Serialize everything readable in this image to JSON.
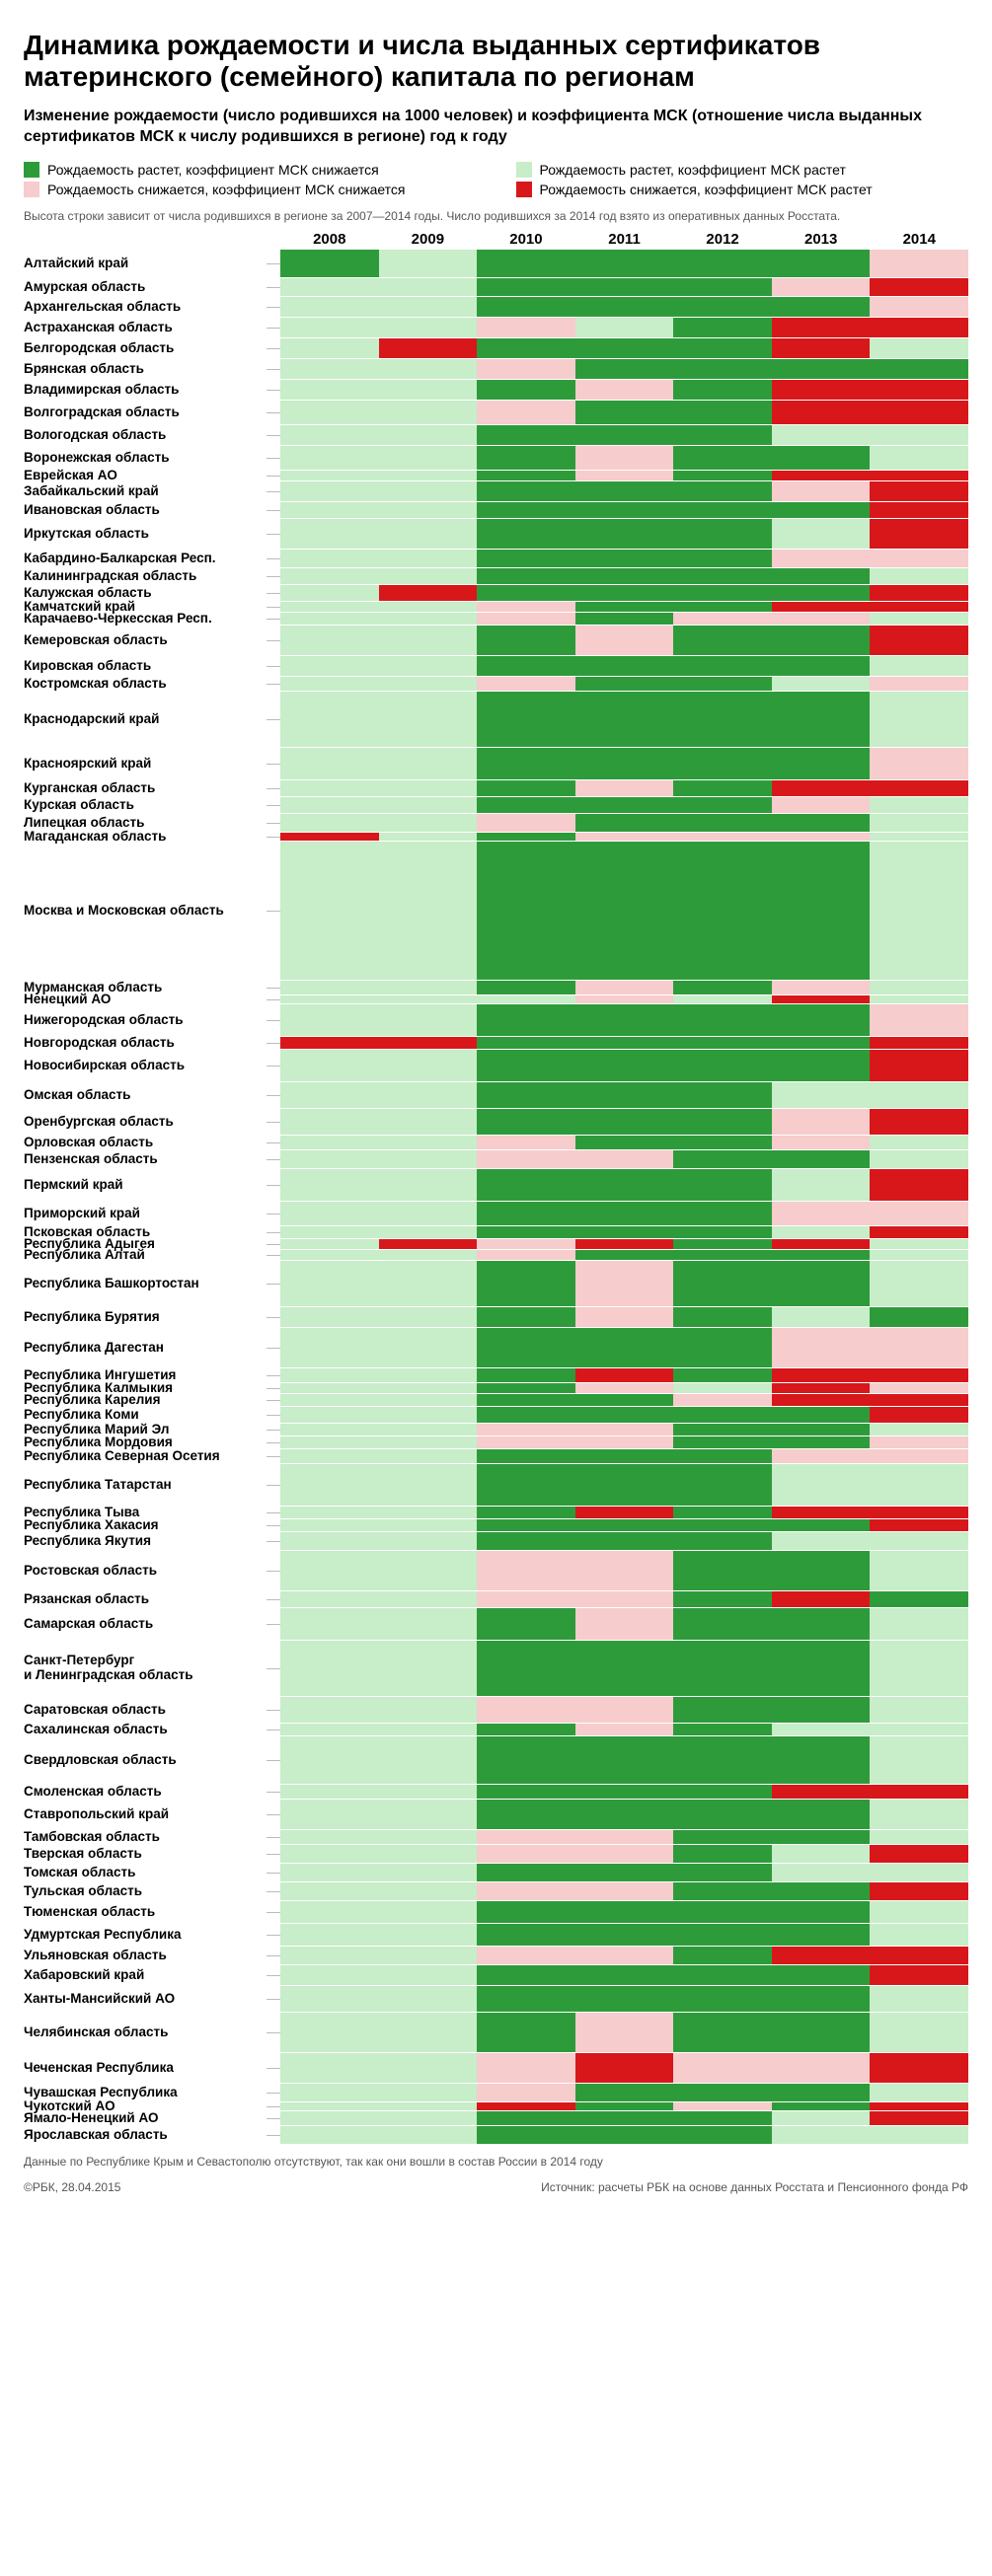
{
  "title": "Динамика рождаемости и числа выданных сертификатов материнского (семейного) капитала по регионам",
  "subtitle": "Изменение рождаемости (число родившихся на 1000 человек) и коэффициента МСК (отношение числа выданных сертификатов МСК к числу родившихся в регионе) год к году",
  "note": "Высота строки зависит от числа родившихся в регионе за 2007—2014 годы. Число родившихся за 2014 год взято из оперативных данных Росстата.",
  "years": [
    "2008",
    "2009",
    "2010",
    "2011",
    "2012",
    "2013",
    "2014"
  ],
  "legend": [
    {
      "color": "#2e9b3b",
      "label": "Рождаемость растет, коэффициент МСК снижается"
    },
    {
      "color": "#c8edc9",
      "label": "Рождаемость растет, коэффициент МСК растет"
    },
    {
      "color": "#f6cccd",
      "label": "Рождаемость снижается, коэффициент МСК снижается"
    },
    {
      "color": "#d8171a",
      "label": "Рождаемость снижается, коэффициент МСК растет"
    }
  ],
  "colors": {
    "G": "#2e9b3b",
    "L": "#c8edc9",
    "P": "#f6cccd",
    "R": "#d8171a",
    "bg": "#c8edc9",
    "sep": "#ffffff"
  },
  "base_row_height": 20,
  "footer_note": "Данные по Республике Крым и Севастополю отсутствуют, так как они вошли в состав России в 2014 году",
  "credit_left": "©РБК, 28.04.2015",
  "credit_right": "Источник: расчеты РБК на основе данных Росстата и Пенсионного фонда РФ",
  "rows": [
    {
      "name": "Алтайский край",
      "h": 1.4,
      "cells": [
        "G",
        "L",
        "G",
        "G",
        "G",
        "G",
        "P"
      ]
    },
    {
      "name": "Амурская область",
      "h": 0.9,
      "cells": [
        "L",
        "L",
        "G",
        "G",
        "G",
        "P",
        "R"
      ]
    },
    {
      "name": "Архангельская область",
      "h": 1.0,
      "cells": [
        "L",
        "L",
        "G",
        "G",
        "G",
        "G",
        "P"
      ]
    },
    {
      "name": "Астраханская область",
      "h": 1.0,
      "cells": [
        "L",
        "L",
        "P",
        "L",
        "G",
        "R",
        "R"
      ]
    },
    {
      "name": "Белгородская область",
      "h": 1.0,
      "cells": [
        "L",
        "R",
        "G",
        "G",
        "G",
        "R",
        "L"
      ]
    },
    {
      "name": "Брянская область",
      "h": 1.0,
      "cells": [
        "L",
        "L",
        "P",
        "G",
        "G",
        "G",
        "G"
      ]
    },
    {
      "name": "Владимирская область",
      "h": 1.0,
      "cells": [
        "L",
        "L",
        "G",
        "P",
        "G",
        "R",
        "R"
      ]
    },
    {
      "name": "Волгоградская область",
      "h": 1.2,
      "cells": [
        "L",
        "L",
        "P",
        "G",
        "G",
        "R",
        "R"
      ]
    },
    {
      "name": "Вологодская область",
      "h": 1.0,
      "cells": [
        "L",
        "L",
        "G",
        "G",
        "G",
        "L",
        "L"
      ]
    },
    {
      "name": "Воронежская область",
      "h": 1.2,
      "cells": [
        "L",
        "L",
        "G",
        "P",
        "G",
        "G",
        "L"
      ]
    },
    {
      "name": "Еврейская АО",
      "h": 0.5,
      "cells": [
        "L",
        "L",
        "G",
        "P",
        "G",
        "R",
        "R"
      ]
    },
    {
      "name": "Забайкальский край",
      "h": 1.0,
      "cells": [
        "L",
        "L",
        "G",
        "G",
        "G",
        "P",
        "R"
      ]
    },
    {
      "name": "Ивановская область",
      "h": 0.8,
      "cells": [
        "L",
        "L",
        "G",
        "G",
        "G",
        "G",
        "R"
      ]
    },
    {
      "name": "Иркутская область",
      "h": 1.5,
      "cells": [
        "L",
        "L",
        "G",
        "G",
        "G",
        "L",
        "R"
      ]
    },
    {
      "name": "Кабардино-Балкарская Респ.",
      "h": 0.9,
      "cells": [
        "L",
        "L",
        "G",
        "G",
        "G",
        "P",
        "P"
      ]
    },
    {
      "name": "Калининградская область",
      "h": 0.8,
      "cells": [
        "L",
        "L",
        "G",
        "G",
        "G",
        "G",
        "L"
      ]
    },
    {
      "name": "Калужская область",
      "h": 0.8,
      "cells": [
        "L",
        "R",
        "G",
        "G",
        "G",
        "G",
        "R"
      ]
    },
    {
      "name": "Камчатский край",
      "h": 0.5,
      "cells": [
        "L",
        "L",
        "P",
        "G",
        "G",
        "R",
        "R"
      ]
    },
    {
      "name": "Карачаево-Черкесская Респ.",
      "h": 0.6,
      "cells": [
        "L",
        "L",
        "P",
        "G",
        "P",
        "P",
        "L"
      ]
    },
    {
      "name": "Кемеровская область",
      "h": 1.5,
      "cells": [
        "L",
        "L",
        "G",
        "P",
        "G",
        "G",
        "R"
      ]
    },
    {
      "name": "Кировская область",
      "h": 1.0,
      "cells": [
        "L",
        "L",
        "G",
        "G",
        "G",
        "G",
        "L"
      ]
    },
    {
      "name": "Костромская область",
      "h": 0.7,
      "cells": [
        "L",
        "L",
        "P",
        "G",
        "G",
        "L",
        "P"
      ]
    },
    {
      "name": "Краснодарский край",
      "h": 2.8,
      "cells": [
        "L",
        "L",
        "G",
        "G",
        "G",
        "G",
        "L"
      ]
    },
    {
      "name": "Красноярский край",
      "h": 1.6,
      "cells": [
        "L",
        "L",
        "G",
        "G",
        "G",
        "G",
        "P"
      ]
    },
    {
      "name": "Курганская область",
      "h": 0.8,
      "cells": [
        "L",
        "L",
        "G",
        "P",
        "G",
        "R",
        "R"
      ]
    },
    {
      "name": "Курская область",
      "h": 0.8,
      "cells": [
        "L",
        "L",
        "G",
        "G",
        "G",
        "P",
        "L"
      ]
    },
    {
      "name": "Липецкая область",
      "h": 0.9,
      "cells": [
        "L",
        "L",
        "P",
        "G",
        "G",
        "G",
        "L"
      ]
    },
    {
      "name": "Магаданская область",
      "h": 0.4,
      "cells": [
        "R",
        "L",
        "G",
        "P",
        "P",
        "P",
        "L"
      ]
    },
    {
      "name": "Москва и Московская область",
      "h": 7.0,
      "cells": [
        "L",
        "L",
        "G",
        "G",
        "G",
        "G",
        "L"
      ]
    },
    {
      "name": "Мурманская область",
      "h": 0.7,
      "cells": [
        "L",
        "L",
        "G",
        "P",
        "G",
        "P",
        "L"
      ]
    },
    {
      "name": "Ненецкий АО",
      "h": 0.4,
      "cells": [
        "L",
        "L",
        "L",
        "P",
        "L",
        "R",
        "L"
      ]
    },
    {
      "name": "Нижегородская область",
      "h": 1.6,
      "cells": [
        "L",
        "L",
        "G",
        "G",
        "G",
        "G",
        "P"
      ]
    },
    {
      "name": "Новгородская область",
      "h": 0.6,
      "cells": [
        "R",
        "R",
        "G",
        "G",
        "G",
        "G",
        "R"
      ]
    },
    {
      "name": "Новосибирская область",
      "h": 1.6,
      "cells": [
        "L",
        "L",
        "G",
        "G",
        "G",
        "G",
        "R"
      ]
    },
    {
      "name": "Омская область",
      "h": 1.3,
      "cells": [
        "L",
        "L",
        "G",
        "G",
        "G",
        "L",
        "L"
      ]
    },
    {
      "name": "Оренбургская область",
      "h": 1.3,
      "cells": [
        "L",
        "L",
        "G",
        "G",
        "G",
        "P",
        "R"
      ]
    },
    {
      "name": "Орловская область",
      "h": 0.7,
      "cells": [
        "L",
        "L",
        "P",
        "G",
        "G",
        "P",
        "L"
      ]
    },
    {
      "name": "Пензенская область",
      "h": 0.9,
      "cells": [
        "L",
        "L",
        "P",
        "P",
        "G",
        "G",
        "L"
      ]
    },
    {
      "name": "Пермский край",
      "h": 1.6,
      "cells": [
        "L",
        "L",
        "G",
        "G",
        "G",
        "L",
        "R"
      ]
    },
    {
      "name": "Приморский край",
      "h": 1.2,
      "cells": [
        "L",
        "L",
        "G",
        "G",
        "G",
        "P",
        "P"
      ]
    },
    {
      "name": "Псковская область",
      "h": 0.6,
      "cells": [
        "L",
        "L",
        "G",
        "G",
        "G",
        "L",
        "R"
      ]
    },
    {
      "name": "Республика Адыгея",
      "h": 0.5,
      "cells": [
        "L",
        "R",
        "P",
        "R",
        "G",
        "R",
        "L"
      ]
    },
    {
      "name": "Республика Алтай",
      "h": 0.5,
      "cells": [
        "L",
        "L",
        "P",
        "G",
        "G",
        "G",
        "L"
      ]
    },
    {
      "name": "Республика Башкортостан",
      "h": 2.3,
      "cells": [
        "L",
        "L",
        "G",
        "P",
        "G",
        "G",
        "L"
      ]
    },
    {
      "name": "Республика Бурятия",
      "h": 1.0,
      "cells": [
        "L",
        "L",
        "G",
        "P",
        "G",
        "L",
        "G"
      ]
    },
    {
      "name": "Республика Дагестан",
      "h": 2.0,
      "cells": [
        "L",
        "L",
        "G",
        "G",
        "G",
        "P",
        "P"
      ]
    },
    {
      "name": "Республика Ингушетия",
      "h": 0.7,
      "cells": [
        "L",
        "L",
        "G",
        "R",
        "G",
        "R",
        "R"
      ]
    },
    {
      "name": "Республика Калмыкия",
      "h": 0.5,
      "cells": [
        "L",
        "L",
        "G",
        "P",
        "L",
        "R",
        "P"
      ]
    },
    {
      "name": "Республика Карелия",
      "h": 0.6,
      "cells": [
        "L",
        "L",
        "G",
        "G",
        "P",
        "R",
        "R"
      ]
    },
    {
      "name": "Республика Коми",
      "h": 0.8,
      "cells": [
        "L",
        "L",
        "G",
        "G",
        "G",
        "G",
        "R"
      ]
    },
    {
      "name": "Республика Марий Эл",
      "h": 0.6,
      "cells": [
        "L",
        "L",
        "P",
        "P",
        "G",
        "G",
        "L"
      ]
    },
    {
      "name": "Республика Мордовия",
      "h": 0.6,
      "cells": [
        "L",
        "L",
        "P",
        "P",
        "G",
        "G",
        "P"
      ]
    },
    {
      "name": "Республика Северная Осетия",
      "h": 0.7,
      "cells": [
        "L",
        "L",
        "G",
        "G",
        "G",
        "P",
        "P"
      ]
    },
    {
      "name": "Республика Татарстан",
      "h": 2.1,
      "cells": [
        "L",
        "L",
        "G",
        "G",
        "G",
        "L",
        "L"
      ]
    },
    {
      "name": "Республика Тыва",
      "h": 0.6,
      "cells": [
        "L",
        "L",
        "G",
        "R",
        "G",
        "R",
        "R"
      ]
    },
    {
      "name": "Республика Хакасия",
      "h": 0.6,
      "cells": [
        "L",
        "L",
        "G",
        "G",
        "G",
        "G",
        "R"
      ]
    },
    {
      "name": "Республика Якутия",
      "h": 0.9,
      "cells": [
        "L",
        "L",
        "G",
        "G",
        "G",
        "L",
        "L"
      ]
    },
    {
      "name": "Ростовская область",
      "h": 2.0,
      "cells": [
        "L",
        "L",
        "P",
        "P",
        "G",
        "G",
        "L"
      ]
    },
    {
      "name": "Рязанская область",
      "h": 0.8,
      "cells": [
        "L",
        "L",
        "P",
        "P",
        "G",
        "R",
        "G"
      ]
    },
    {
      "name": "Самарская область",
      "h": 1.6,
      "cells": [
        "L",
        "L",
        "G",
        "P",
        "G",
        "G",
        "L"
      ]
    },
    {
      "name": "Санкт-Петербург\nи Ленинградская область",
      "h": 2.8,
      "cells": [
        "L",
        "L",
        "G",
        "G",
        "G",
        "G",
        "L"
      ]
    },
    {
      "name": "Саратовская область",
      "h": 1.3,
      "cells": [
        "L",
        "L",
        "P",
        "P",
        "G",
        "G",
        "L"
      ]
    },
    {
      "name": "Сахалинская область",
      "h": 0.6,
      "cells": [
        "L",
        "L",
        "G",
        "P",
        "G",
        "L",
        "L"
      ]
    },
    {
      "name": "Свердловская область",
      "h": 2.4,
      "cells": [
        "L",
        "L",
        "G",
        "G",
        "G",
        "G",
        "L"
      ]
    },
    {
      "name": "Смоленская область",
      "h": 0.7,
      "cells": [
        "L",
        "L",
        "G",
        "G",
        "G",
        "R",
        "R"
      ]
    },
    {
      "name": "Ставропольский край",
      "h": 1.5,
      "cells": [
        "L",
        "L",
        "G",
        "G",
        "G",
        "G",
        "L"
      ]
    },
    {
      "name": "Тамбовская область",
      "h": 0.7,
      "cells": [
        "L",
        "L",
        "P",
        "P",
        "G",
        "G",
        "L"
      ]
    },
    {
      "name": "Тверская область",
      "h": 0.9,
      "cells": [
        "L",
        "L",
        "P",
        "P",
        "G",
        "L",
        "R"
      ]
    },
    {
      "name": "Томская область",
      "h": 0.9,
      "cells": [
        "L",
        "L",
        "G",
        "G",
        "G",
        "L",
        "L"
      ]
    },
    {
      "name": "Тульская область",
      "h": 0.9,
      "cells": [
        "L",
        "L",
        "P",
        "P",
        "G",
        "G",
        "R"
      ]
    },
    {
      "name": "Тюменская область",
      "h": 1.1,
      "cells": [
        "L",
        "L",
        "G",
        "G",
        "G",
        "G",
        "L"
      ]
    },
    {
      "name": "Удмуртская Республика",
      "h": 1.1,
      "cells": [
        "L",
        "L",
        "G",
        "G",
        "G",
        "G",
        "L"
      ]
    },
    {
      "name": "Ульяновская область",
      "h": 0.9,
      "cells": [
        "L",
        "L",
        "P",
        "P",
        "G",
        "R",
        "R"
      ]
    },
    {
      "name": "Хабаровский край",
      "h": 1.0,
      "cells": [
        "L",
        "L",
        "G",
        "G",
        "G",
        "G",
        "R"
      ]
    },
    {
      "name": "Ханты-Мансийский АО",
      "h": 1.3,
      "cells": [
        "L",
        "L",
        "G",
        "G",
        "G",
        "G",
        "L"
      ]
    },
    {
      "name": "Челябинская область",
      "h": 2.0,
      "cells": [
        "L",
        "L",
        "G",
        "P",
        "G",
        "G",
        "L"
      ]
    },
    {
      "name": "Чеченская Республика",
      "h": 1.5,
      "cells": [
        "L",
        "L",
        "P",
        "R",
        "P",
        "P",
        "R"
      ]
    },
    {
      "name": "Чувашская Республика",
      "h": 0.9,
      "cells": [
        "L",
        "L",
        "P",
        "G",
        "G",
        "G",
        "L"
      ]
    },
    {
      "name": "Чукотский АО",
      "h": 0.4,
      "cells": [
        "L",
        "L",
        "R",
        "G",
        "P",
        "G",
        "R"
      ]
    },
    {
      "name": "Ямало-Ненецкий АО",
      "h": 0.7,
      "cells": [
        "L",
        "L",
        "G",
        "G",
        "G",
        "L",
        "R"
      ]
    },
    {
      "name": "Ярославская область",
      "h": 0.9,
      "cells": [
        "L",
        "L",
        "G",
        "G",
        "G",
        "L",
        "L"
      ]
    }
  ]
}
